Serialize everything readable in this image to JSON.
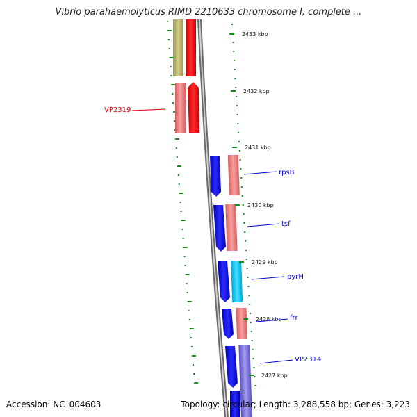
{
  "title": "Vibrio parahaemolyticus RIMD 2210633 chromosome I, complete ...",
  "footer": {
    "accession": "Accession: NC_004603",
    "summary": "Topology: circular; Length: 3,288,558 bp; Genes: 3,223"
  },
  "colors": {
    "tick": "#1a8a1a",
    "backbone": "#8c8c8c",
    "label_red": "#dd0000",
    "label_blue": "#0000cc"
  },
  "ticks": [
    {
      "label": "2433 kbp"
    },
    {
      "label": "2432 kbp"
    },
    {
      "label": "2431 kbp"
    },
    {
      "label": "2430 kbp"
    },
    {
      "label": "2429 kbp"
    },
    {
      "label": "2428 kbp"
    },
    {
      "label": "2427 kbp"
    }
  ],
  "genes": [
    {
      "label": "VP2319",
      "color": "red"
    },
    {
      "label": "rpsB",
      "color": "blue"
    },
    {
      "label": "tsf",
      "color": "blue"
    },
    {
      "label": "pyrH",
      "color": "blue"
    },
    {
      "label": "frr",
      "color": "blue"
    },
    {
      "label": "VP2314",
      "color": "blue"
    }
  ]
}
